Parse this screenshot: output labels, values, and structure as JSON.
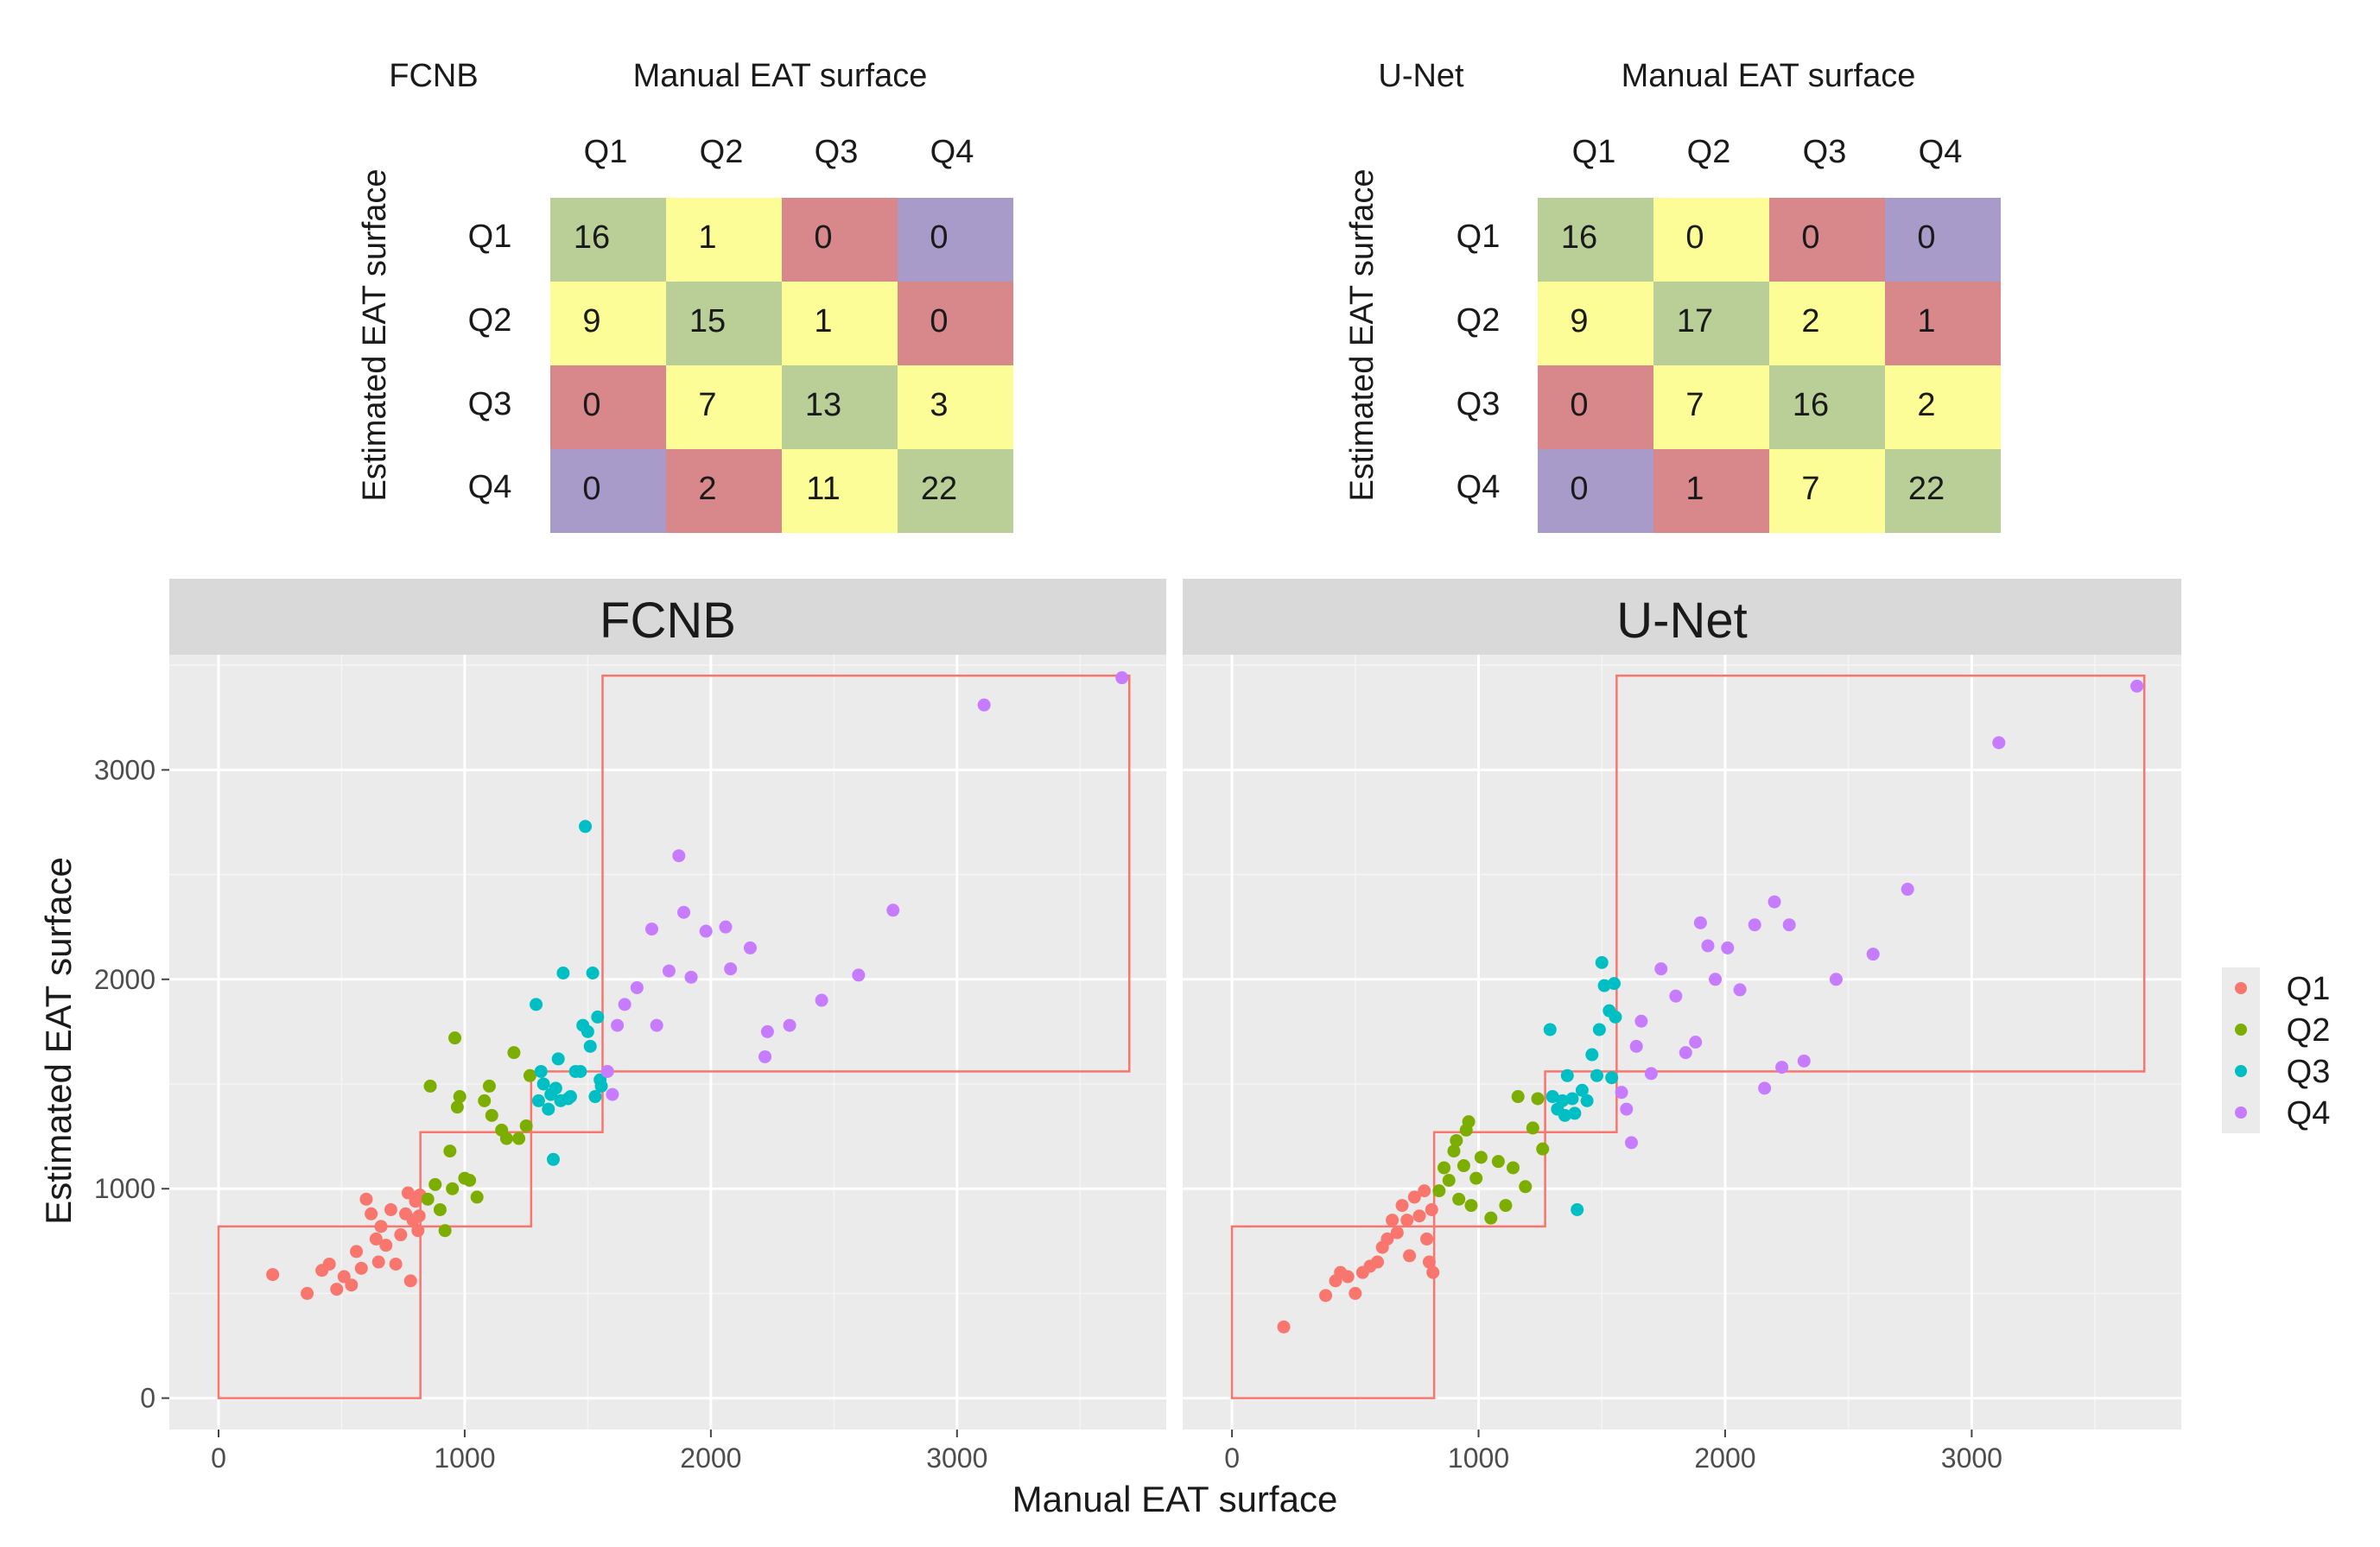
{
  "confusion_matrices": [
    {
      "name": "FCNB",
      "col_title": "Manual EAT surface",
      "row_title": "Estimated EAT surface",
      "col_labels": [
        "Q1",
        "Q2",
        "Q3",
        "Q4"
      ],
      "row_labels": [
        "Q1",
        "Q2",
        "Q3",
        "Q4"
      ],
      "cells": [
        [
          16,
          1,
          0,
          0
        ],
        [
          9,
          15,
          1,
          0
        ],
        [
          0,
          7,
          13,
          3
        ],
        [
          0,
          2,
          11,
          22
        ]
      ]
    },
    {
      "name": "U-Net",
      "col_title": "Manual EAT surface",
      "row_title": "Estimated EAT surface",
      "col_labels": [
        "Q1",
        "Q2",
        "Q3",
        "Q4"
      ],
      "row_labels": [
        "Q1",
        "Q2",
        "Q3",
        "Q4"
      ],
      "cells": [
        [
          16,
          0,
          0,
          0
        ],
        [
          9,
          17,
          2,
          1
        ],
        [
          0,
          7,
          16,
          2
        ],
        [
          0,
          1,
          7,
          22
        ]
      ]
    }
  ],
  "cell_colors": {
    "distance_0": "#b9cf97",
    "distance_1": "#fdfd98",
    "distance_2": "#d8878a",
    "distance_3": "#a99bc9"
  },
  "chart_data": {
    "type": "scatter",
    "xlabel": "Manual EAT surface",
    "ylabel": "Estimated EAT surface",
    "xlim": [
      -200,
      3850
    ],
    "ylim": [
      -150,
      3550
    ],
    "xticks": [
      0,
      1000,
      2000,
      3000
    ],
    "yticks": [
      0,
      1000,
      2000,
      3000
    ],
    "xtick_labels": [
      "0",
      "1000",
      "2000",
      "3000"
    ],
    "ytick_labels": [
      "0",
      "1000",
      "2000",
      "3000"
    ],
    "grid": true,
    "legend_position": "right",
    "legend": [
      {
        "label": "Q1",
        "color": "#f8766d"
      },
      {
        "label": "Q2",
        "color": "#7cae00"
      },
      {
        "label": "Q3",
        "color": "#00bfc4"
      },
      {
        "label": "Q4",
        "color": "#c77cff"
      }
    ],
    "quartile_boxes": [
      {
        "x": [
          0,
          820
        ],
        "y": [
          0,
          820
        ]
      },
      {
        "x": [
          820,
          1270
        ],
        "y": [
          820,
          1270
        ]
      },
      {
        "x": [
          1270,
          1560
        ],
        "y": [
          1270,
          1560
        ]
      },
      {
        "x": [
          1560,
          3700
        ],
        "y": [
          1560,
          3450
        ]
      }
    ],
    "box_color": "#f8766d",
    "panels": [
      {
        "title": "FCNB",
        "series": [
          {
            "name": "Q1",
            "points": [
              [
                220,
                590
              ],
              [
                360,
                500
              ],
              [
                420,
                610
              ],
              [
                450,
                640
              ],
              [
                480,
                520
              ],
              [
                510,
                580
              ],
              [
                540,
                540
              ],
              [
                560,
                700
              ],
              [
                580,
                620
              ],
              [
                600,
                950
              ],
              [
                620,
                880
              ],
              [
                640,
                760
              ],
              [
                650,
                650
              ],
              [
                660,
                820
              ],
              [
                680,
                730
              ],
              [
                700,
                900
              ],
              [
                720,
                640
              ],
              [
                740,
                780
              ],
              [
                760,
                880
              ],
              [
                770,
                980
              ],
              [
                780,
                560
              ],
              [
                790,
                850
              ],
              [
                800,
                940
              ],
              [
                810,
                800
              ],
              [
                815,
                870
              ],
              [
                818,
                970
              ]
            ]
          },
          {
            "name": "Q2",
            "points": [
              [
                850,
                950
              ],
              [
                860,
                1490
              ],
              [
                880,
                1020
              ],
              [
                900,
                900
              ],
              [
                920,
                800
              ],
              [
                940,
                1180
              ],
              [
                950,
                1000
              ],
              [
                960,
                1720
              ],
              [
                970,
                1390
              ],
              [
                980,
                1440
              ],
              [
                1000,
                1050
              ],
              [
                1020,
                1040
              ],
              [
                1050,
                960
              ],
              [
                1080,
                1420
              ],
              [
                1100,
                1490
              ],
              [
                1110,
                1350
              ],
              [
                1150,
                1280
              ],
              [
                1170,
                1240
              ],
              [
                1200,
                1650
              ],
              [
                1220,
                1240
              ],
              [
                1250,
                1300
              ],
              [
                1265,
                1540
              ]
            ]
          },
          {
            "name": "Q3",
            "points": [
              [
                1290,
                1880
              ],
              [
                1300,
                1420
              ],
              [
                1310,
                1560
              ],
              [
                1320,
                1500
              ],
              [
                1340,
                1380
              ],
              [
                1350,
                1450
              ],
              [
                1360,
                1140
              ],
              [
                1370,
                1480
              ],
              [
                1380,
                1620
              ],
              [
                1390,
                1420
              ],
              [
                1400,
                2030
              ],
              [
                1420,
                1430
              ],
              [
                1430,
                1440
              ],
              [
                1450,
                1560
              ],
              [
                1470,
                1560
              ],
              [
                1480,
                1780
              ],
              [
                1490,
                2730
              ],
              [
                1500,
                1750
              ],
              [
                1510,
                1680
              ],
              [
                1520,
                2030
              ],
              [
                1530,
                1440
              ],
              [
                1540,
                1820
              ],
              [
                1550,
                1520
              ],
              [
                1555,
                1490
              ]
            ]
          },
          {
            "name": "Q4",
            "points": [
              [
                1580,
                1560
              ],
              [
                1600,
                1450
              ],
              [
                1620,
                1780
              ],
              [
                1650,
                1880
              ],
              [
                1700,
                1960
              ],
              [
                1760,
                2240
              ],
              [
                1780,
                1780
              ],
              [
                1830,
                2040
              ],
              [
                1870,
                2590
              ],
              [
                1890,
                2320
              ],
              [
                1920,
                2010
              ],
              [
                1980,
                2230
              ],
              [
                2060,
                2250
              ],
              [
                2080,
                2050
              ],
              [
                2160,
                2150
              ],
              [
                2220,
                1630
              ],
              [
                2230,
                1750
              ],
              [
                2320,
                1780
              ],
              [
                2450,
                1900
              ],
              [
                2600,
                2020
              ],
              [
                2740,
                2330
              ],
              [
                3110,
                3310
              ],
              [
                3670,
                3440
              ]
            ]
          }
        ]
      },
      {
        "title": "U-Net",
        "series": [
          {
            "name": "Q1",
            "points": [
              [
                210,
                340
              ],
              [
                380,
                490
              ],
              [
                420,
                560
              ],
              [
                440,
                600
              ],
              [
                470,
                580
              ],
              [
                500,
                500
              ],
              [
                530,
                600
              ],
              [
                560,
                630
              ],
              [
                590,
                650
              ],
              [
                610,
                720
              ],
              [
                630,
                760
              ],
              [
                650,
                850
              ],
              [
                670,
                790
              ],
              [
                690,
                920
              ],
              [
                710,
                850
              ],
              [
                720,
                680
              ],
              [
                740,
                960
              ],
              [
                760,
                870
              ],
              [
                780,
                990
              ],
              [
                790,
                760
              ],
              [
                800,
                650
              ],
              [
                810,
                900
              ],
              [
                815,
                600
              ]
            ]
          },
          {
            "name": "Q2",
            "points": [
              [
                840,
                990
              ],
              [
                860,
                1100
              ],
              [
                880,
                1040
              ],
              [
                900,
                1180
              ],
              [
                910,
                1230
              ],
              [
                920,
                950
              ],
              [
                940,
                1110
              ],
              [
                950,
                1280
              ],
              [
                960,
                1320
              ],
              [
                970,
                920
              ],
              [
                990,
                1050
              ],
              [
                1010,
                1150
              ],
              [
                1050,
                860
              ],
              [
                1080,
                1130
              ],
              [
                1110,
                920
              ],
              [
                1140,
                1100
              ],
              [
                1160,
                1440
              ],
              [
                1190,
                1010
              ],
              [
                1220,
                1290
              ],
              [
                1240,
                1430
              ],
              [
                1260,
                1190
              ]
            ]
          },
          {
            "name": "Q3",
            "points": [
              [
                1290,
                1760
              ],
              [
                1300,
                1440
              ],
              [
                1320,
                1380
              ],
              [
                1340,
                1420
              ],
              [
                1350,
                1350
              ],
              [
                1360,
                1540
              ],
              [
                1380,
                1430
              ],
              [
                1390,
                1360
              ],
              [
                1400,
                900
              ],
              [
                1420,
                1470
              ],
              [
                1440,
                1420
              ],
              [
                1460,
                1640
              ],
              [
                1480,
                1540
              ],
              [
                1490,
                1760
              ],
              [
                1500,
                2080
              ],
              [
                1510,
                1970
              ],
              [
                1530,
                1850
              ],
              [
                1540,
                1530
              ],
              [
                1550,
                1980
              ],
              [
                1555,
                1820
              ]
            ]
          },
          {
            "name": "Q4",
            "points": [
              [
                1580,
                1460
              ],
              [
                1600,
                1380
              ],
              [
                1620,
                1220
              ],
              [
                1640,
                1680
              ],
              [
                1660,
                1800
              ],
              [
                1700,
                1550
              ],
              [
                1740,
                2050
              ],
              [
                1800,
                1920
              ],
              [
                1840,
                1650
              ],
              [
                1880,
                1700
              ],
              [
                1900,
                2270
              ],
              [
                1930,
                2160
              ],
              [
                1960,
                2000
              ],
              [
                2010,
                2150
              ],
              [
                2060,
                1950
              ],
              [
                2120,
                2260
              ],
              [
                2160,
                1480
              ],
              [
                2200,
                2370
              ],
              [
                2230,
                1580
              ],
              [
                2260,
                2260
              ],
              [
                2320,
                1610
              ],
              [
                2450,
                2000
              ],
              [
                2600,
                2120
              ],
              [
                2740,
                2430
              ],
              [
                3110,
                3130
              ],
              [
                3670,
                3400
              ]
            ]
          }
        ]
      }
    ]
  }
}
